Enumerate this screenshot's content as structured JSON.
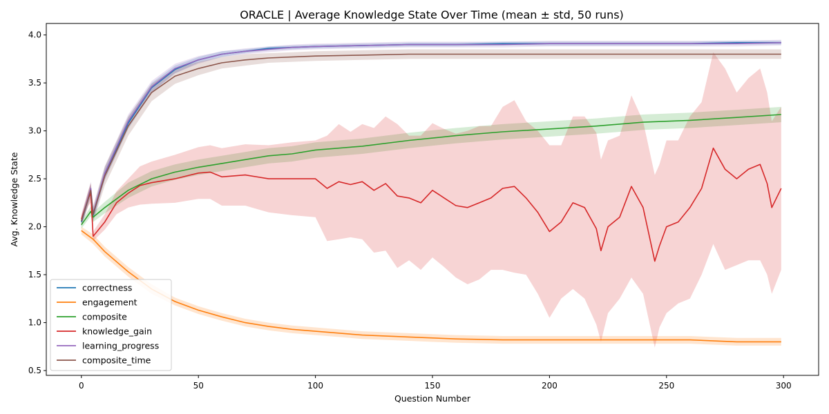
{
  "chart_data": {
    "type": "line",
    "title": "ORACLE | Average Knowledge State Over Time (mean ± std, 50 runs)",
    "xlabel": "Question Number",
    "ylabel": "Avg. Knowledge State",
    "xlim": [
      -15,
      315
    ],
    "ylim": [
      0.45,
      4.12
    ],
    "xticks": [
      0,
      50,
      100,
      150,
      200,
      250,
      300
    ],
    "yticks": [
      0.5,
      1.0,
      1.5,
      2.0,
      2.5,
      3.0,
      3.5,
      4.0
    ],
    "ytick_labels": [
      "0.5",
      "1.0",
      "1.5",
      "2.0",
      "2.5",
      "3.0",
      "3.5",
      "4.0"
    ],
    "grid": false,
    "legend_position": "lower-left",
    "series": [
      {
        "name": "correctness",
        "color": "#1f77b4",
        "x": [
          0,
          4,
          5,
          10,
          20,
          30,
          40,
          50,
          60,
          70,
          80,
          90,
          100,
          120,
          140,
          160,
          180,
          200,
          220,
          240,
          260,
          280,
          299
        ],
        "mean": [
          2.05,
          2.38,
          2.12,
          2.55,
          3.08,
          3.45,
          3.64,
          3.74,
          3.8,
          3.83,
          3.86,
          3.87,
          3.88,
          3.89,
          3.9,
          3.9,
          3.91,
          3.91,
          3.91,
          3.91,
          3.91,
          3.92,
          3.92
        ],
        "std": [
          0.05,
          0.06,
          0.06,
          0.06,
          0.06,
          0.05,
          0.04,
          0.03,
          0.03,
          0.02,
          0.02,
          0.02,
          0.02,
          0.02,
          0.02,
          0.02,
          0.02,
          0.02,
          0.02,
          0.02,
          0.02,
          0.02,
          0.02
        ]
      },
      {
        "name": "engagement",
        "color": "#ff7f0e",
        "x": [
          0,
          5,
          10,
          20,
          30,
          40,
          50,
          60,
          70,
          80,
          90,
          100,
          120,
          140,
          160,
          180,
          200,
          220,
          240,
          260,
          280,
          299
        ],
        "mean": [
          1.96,
          1.87,
          1.74,
          1.53,
          1.35,
          1.22,
          1.13,
          1.06,
          1.0,
          0.96,
          0.93,
          0.91,
          0.87,
          0.85,
          0.83,
          0.82,
          0.82,
          0.82,
          0.82,
          0.82,
          0.8,
          0.8
        ],
        "std": [
          0.04,
          0.05,
          0.05,
          0.05,
          0.05,
          0.04,
          0.04,
          0.04,
          0.04,
          0.04,
          0.04,
          0.04,
          0.04,
          0.04,
          0.04,
          0.04,
          0.04,
          0.04,
          0.04,
          0.04,
          0.04,
          0.04
        ]
      },
      {
        "name": "composite",
        "color": "#2ca02c",
        "x": [
          0,
          4,
          5,
          10,
          20,
          30,
          40,
          50,
          60,
          70,
          80,
          90,
          100,
          120,
          140,
          160,
          180,
          200,
          220,
          240,
          260,
          280,
          299
        ],
        "mean": [
          2.02,
          2.16,
          2.1,
          2.2,
          2.38,
          2.5,
          2.57,
          2.62,
          2.66,
          2.7,
          2.74,
          2.76,
          2.8,
          2.84,
          2.9,
          2.95,
          2.99,
          3.02,
          3.05,
          3.09,
          3.11,
          3.14,
          3.17
        ],
        "std": [
          0.04,
          0.05,
          0.05,
          0.06,
          0.08,
          0.08,
          0.08,
          0.08,
          0.08,
          0.08,
          0.08,
          0.08,
          0.08,
          0.08,
          0.08,
          0.08,
          0.08,
          0.08,
          0.08,
          0.08,
          0.08,
          0.08,
          0.08
        ]
      },
      {
        "name": "knowledge_gain",
        "color": "#d62728",
        "x": [
          0,
          3,
          4,
          5,
          10,
          15,
          20,
          25,
          30,
          40,
          50,
          55,
          60,
          70,
          80,
          90,
          100,
          105,
          110,
          115,
          120,
          125,
          130,
          135,
          140,
          145,
          150,
          155,
          160,
          165,
          170,
          175,
          180,
          185,
          190,
          195,
          200,
          205,
          210,
          215,
          220,
          222,
          225,
          230,
          235,
          240,
          245,
          247,
          250,
          255,
          260,
          265,
          270,
          275,
          280,
          285,
          290,
          293,
          295,
          299
        ],
        "mean": [
          2.08,
          2.3,
          2.35,
          1.9,
          2.05,
          2.25,
          2.35,
          2.43,
          2.46,
          2.5,
          2.56,
          2.57,
          2.52,
          2.54,
          2.5,
          2.5,
          2.5,
          2.4,
          2.47,
          2.44,
          2.47,
          2.38,
          2.45,
          2.32,
          2.3,
          2.25,
          2.38,
          2.3,
          2.22,
          2.2,
          2.25,
          2.3,
          2.4,
          2.42,
          2.3,
          2.15,
          1.95,
          2.05,
          2.25,
          2.2,
          1.98,
          1.75,
          2.0,
          2.1,
          2.42,
          2.2,
          1.64,
          1.8,
          2.0,
          2.05,
          2.2,
          2.4,
          2.82,
          2.6,
          2.5,
          2.6,
          2.65,
          2.45,
          2.2,
          2.4
        ],
        "std": [
          0.05,
          0.08,
          0.1,
          0.05,
          0.08,
          0.12,
          0.15,
          0.2,
          0.22,
          0.25,
          0.27,
          0.28,
          0.3,
          0.32,
          0.35,
          0.38,
          0.4,
          0.55,
          0.6,
          0.55,
          0.6,
          0.65,
          0.7,
          0.75,
          0.65,
          0.7,
          0.7,
          0.72,
          0.75,
          0.8,
          0.8,
          0.75,
          0.85,
          0.9,
          0.8,
          0.85,
          0.9,
          0.8,
          0.9,
          0.95,
          1.0,
          0.95,
          0.9,
          0.85,
          0.95,
          0.9,
          0.9,
          0.85,
          0.9,
          0.85,
          0.95,
          0.9,
          1.0,
          1.05,
          0.9,
          0.95,
          1.0,
          0.95,
          0.9,
          0.85
        ]
      },
      {
        "name": "learning_progress",
        "color": "#9467bd",
        "x": [
          0,
          4,
          5,
          10,
          20,
          30,
          40,
          50,
          60,
          70,
          80,
          90,
          100,
          120,
          140,
          160,
          180,
          200,
          220,
          240,
          260,
          280,
          299
        ],
        "mean": [
          2.06,
          2.4,
          2.14,
          2.56,
          3.1,
          3.46,
          3.65,
          3.74,
          3.8,
          3.83,
          3.85,
          3.87,
          3.88,
          3.89,
          3.9,
          3.9,
          3.9,
          3.91,
          3.91,
          3.91,
          3.91,
          3.91,
          3.92
        ],
        "std": [
          0.05,
          0.07,
          0.07,
          0.07,
          0.07,
          0.06,
          0.05,
          0.04,
          0.03,
          0.03,
          0.03,
          0.03,
          0.03,
          0.03,
          0.03,
          0.03,
          0.03,
          0.03,
          0.03,
          0.03,
          0.03,
          0.03,
          0.03
        ]
      },
      {
        "name": "composite_time",
        "color": "#8c564b",
        "x": [
          0,
          4,
          5,
          10,
          20,
          30,
          40,
          50,
          60,
          70,
          80,
          90,
          100,
          120,
          140,
          160,
          180,
          200,
          220,
          240,
          260,
          280,
          299
        ],
        "mean": [
          2.06,
          2.38,
          2.13,
          2.53,
          3.05,
          3.4,
          3.57,
          3.65,
          3.71,
          3.74,
          3.76,
          3.77,
          3.78,
          3.79,
          3.8,
          3.8,
          3.8,
          3.8,
          3.8,
          3.8,
          3.8,
          3.8,
          3.8
        ],
        "std": [
          0.05,
          0.08,
          0.08,
          0.1,
          0.1,
          0.09,
          0.08,
          0.07,
          0.06,
          0.06,
          0.05,
          0.05,
          0.05,
          0.05,
          0.05,
          0.05,
          0.05,
          0.05,
          0.05,
          0.05,
          0.05,
          0.05,
          0.05
        ]
      }
    ]
  }
}
